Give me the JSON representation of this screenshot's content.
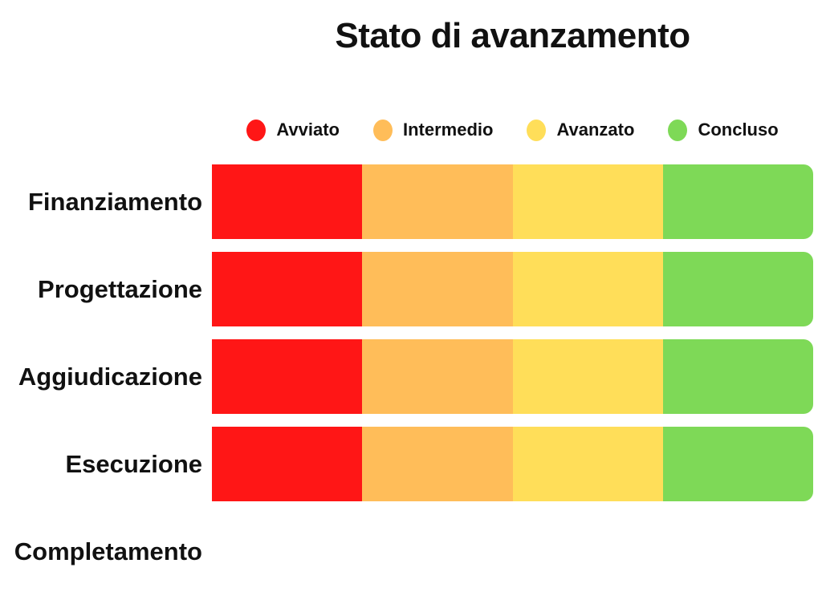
{
  "title": "Stato di avanzamento",
  "colors": {
    "avviato": "#ff1616",
    "intermedio": "#ffbd59",
    "avanzato": "#ffde59",
    "concluso": "#7ed957",
    "text": "#111111",
    "background": "#ffffff"
  },
  "chart_data": {
    "type": "bar",
    "variant": "horizontal-stacked",
    "title": "Stato di avanzamento",
    "categories": [
      "Finanziamento",
      "Progettazione",
      "Aggiudicazione",
      "Esecuzione",
      "Completamento"
    ],
    "series": [
      {
        "name": "Avviato",
        "color": "#ff1616",
        "values": [
          25,
          25,
          25,
          25,
          0
        ]
      },
      {
        "name": "Intermedio",
        "color": "#ffbd59",
        "values": [
          25,
          25,
          25,
          25,
          0
        ]
      },
      {
        "name": "Avanzato",
        "color": "#ffde59",
        "values": [
          25,
          25,
          25,
          25,
          0
        ]
      },
      {
        "name": "Concluso",
        "color": "#7ed957",
        "values": [
          25,
          25,
          25,
          25,
          0
        ]
      }
    ],
    "legend_position": "top",
    "legend_entries": [
      "Avviato",
      "Intermedio",
      "Avanzato",
      "Concluso"
    ],
    "xlabel": "",
    "ylabel": "",
    "axes_visible": false,
    "grid": false,
    "xlim": [
      0,
      100
    ],
    "notes": "Each of the first four rows is a full-width bar split into four equal 25% segments; Completamento row has no bar (0%)."
  }
}
